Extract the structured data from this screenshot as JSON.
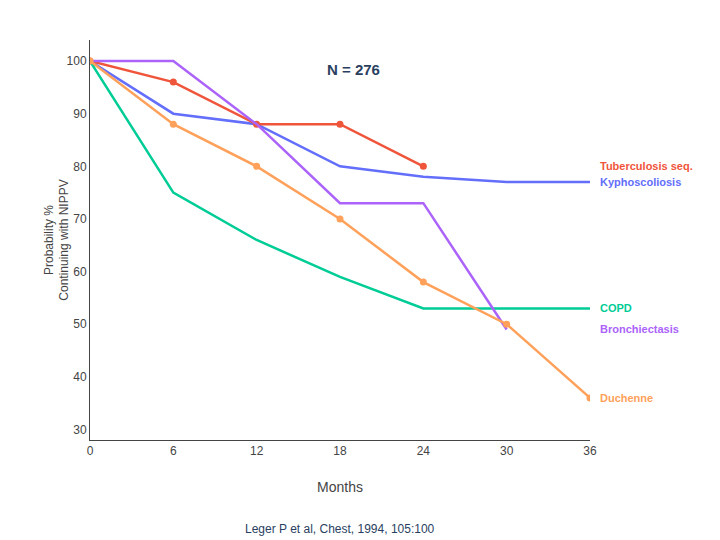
{
  "chart_data": {
    "type": "line",
    "annotations": [
      "N = 276",
      "Leger P et al, Chest, 1994, 105:100"
    ],
    "xlabel": "Months",
    "ylabel": "Probability %\nContinuing with NIPPV",
    "xlim": [
      0,
      36
    ],
    "ylim": [
      28,
      104
    ],
    "xticks": [
      0,
      6,
      12,
      18,
      24,
      30,
      36
    ],
    "yticks": [
      30,
      40,
      50,
      60,
      70,
      80,
      90,
      100
    ],
    "grid": false,
    "series": [
      {
        "name": "Kyphoscoliosis",
        "x": [
          0,
          6,
          12,
          18,
          24,
          30,
          36
        ],
        "values": [
          100,
          90,
          88,
          80,
          78,
          77,
          77
        ]
      },
      {
        "name": "Tuberculosis seq.",
        "x": [
          0,
          6,
          12,
          18,
          24
        ],
        "values": [
          100,
          96,
          88,
          88,
          80
        ],
        "marker": "circle"
      },
      {
        "name": "COPD",
        "x": [
          0,
          6,
          12,
          18,
          24,
          30,
          36
        ],
        "values": [
          100,
          75,
          66,
          59,
          53,
          53,
          53
        ]
      },
      {
        "name": "Bronchiectasis",
        "x": [
          0,
          6,
          12,
          18,
          24,
          30
        ],
        "values": [
          100,
          100,
          88,
          73,
          73,
          49
        ]
      },
      {
        "name": "Duchenne",
        "x": [
          0,
          6,
          12,
          18,
          24,
          30,
          36
        ],
        "values": [
          100,
          88,
          80,
          70,
          58,
          50,
          36
        ],
        "marker": "circle"
      }
    ]
  }
}
